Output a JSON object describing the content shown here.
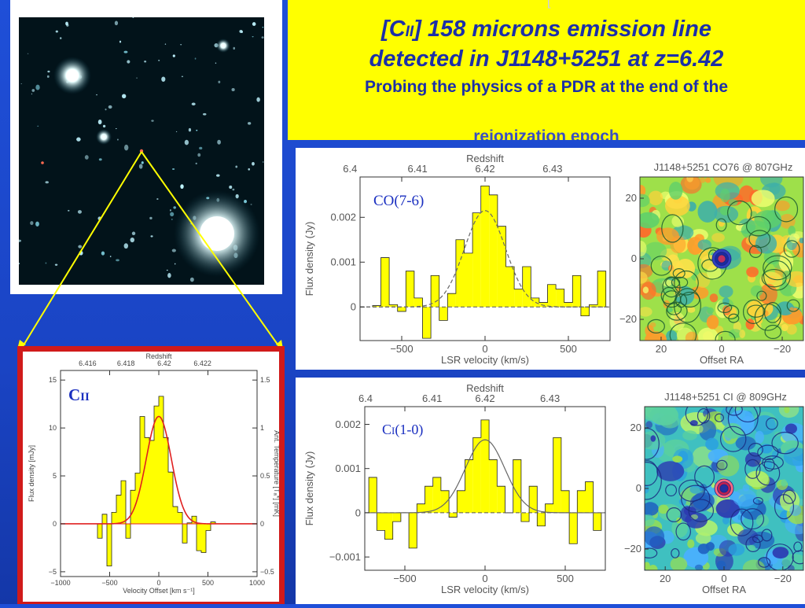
{
  "title": {
    "line1_prefix": "[C",
    "line1_ion": "II",
    "line1_suffix": "] 158 microns emission line",
    "line2": "detected in J1148+5251 at  z=6.42",
    "subtitle": "Probing the physics of a PDR at the end of the",
    "hidden_text": "reionization epoch",
    "top_mark": "["
  },
  "colors": {
    "background": "#1f4fd8",
    "title_bg": "#ffff00",
    "title_text": "#1c2fa8",
    "bar_fill": "#ffff00",
    "frame_red": "#d01a1a",
    "pointer_line": "#ffff00",
    "fit_red": "#e02020"
  },
  "sky_image": {
    "type": "deep-field-image"
  },
  "chart_data": [
    {
      "id": "cii",
      "type": "bar",
      "label_main": "C",
      "label_sub": "II",
      "top_axis_label": "Redshift",
      "top_ticks": [
        "6.416",
        "6.418",
        "6.42",
        "6.422"
      ],
      "top_tick_values": [
        -725,
        -335,
        55,
        445
      ],
      "x_ticks": [
        "−1000",
        "−500",
        "0",
        "500",
        "1000"
      ],
      "x_tick_values": [
        -1000,
        -500,
        0,
        500,
        1000
      ],
      "y_ticks": [
        "−5",
        "0",
        "5",
        "10",
        "15"
      ],
      "y_tick_values": [
        -5,
        0,
        5,
        10,
        15
      ],
      "right_ticks": [
        "−0.5",
        "0",
        "0.5",
        "1",
        "1.5"
      ],
      "right_tick_values": [
        -0.5,
        0,
        0.5,
        1,
        1.5
      ],
      "xlabel": "Velocity Offset [km s⁻¹]",
      "ylabel": "Flux density [mJy]",
      "right_ylabel": "Ant. Temperature [Tₐ*] [mK]",
      "xlim": [
        -1000,
        1000
      ],
      "ylim": [
        -5.5,
        16
      ],
      "bin_width": 48,
      "x": [
        -600,
        -552,
        -504,
        -456,
        -408,
        -360,
        -312,
        -264,
        -216,
        -168,
        -120,
        -72,
        -24,
        24,
        72,
        120,
        168,
        216,
        264,
        312,
        360,
        408,
        456,
        504,
        552,
        600
      ],
      "values": [
        -1.5,
        1.0,
        -4.4,
        1.2,
        3.0,
        4.5,
        -1.5,
        3.5,
        5.3,
        11.2,
        9.0,
        8.7,
        12.3,
        13.3,
        9.0,
        5.4,
        1.8,
        1.2,
        -2.0,
        0.1,
        0.8,
        -2.8,
        -3.0,
        -0.7,
        0.2,
        0
      ],
      "fit": {
        "amplitude": 11.2,
        "center": 0,
        "fwhm": 300
      }
    },
    {
      "id": "co76",
      "type": "bar",
      "label": "CO(7-6)",
      "top_axis_label": "Redshift",
      "top_ticks": [
        "6.4",
        "6.41",
        "6.42",
        "6.43"
      ],
      "top_tick_values": [
        -810,
        -405,
        0,
        405
      ],
      "x_ticks": [
        "−500",
        "0",
        "500"
      ],
      "x_tick_values": [
        -500,
        0,
        500
      ],
      "y_ticks": [
        "0",
        "0.001",
        "0.002"
      ],
      "y_tick_values": [
        0,
        0.001,
        0.002
      ],
      "xlabel": "LSR velocity (km/s)",
      "ylabel": "Flux density (Jy)",
      "xlim": [
        -750,
        750
      ],
      "ylim": [
        -0.00075,
        0.0029
      ],
      "bin_width": 50,
      "x": [
        -650,
        -600,
        -550,
        -500,
        -450,
        -400,
        -350,
        -300,
        -250,
        -200,
        -150,
        -100,
        -50,
        0,
        50,
        100,
        150,
        200,
        250,
        300,
        350,
        400,
        450,
        500,
        550,
        600,
        650,
        700
      ],
      "values": [
        3e-05,
        0.0011,
        5e-05,
        -0.0001,
        0.0008,
        0.0002,
        -0.0007,
        0.0007,
        -0.0003,
        0.0003,
        0.0015,
        0.0012,
        0.0021,
        0.0027,
        0.0025,
        0.0018,
        0.0009,
        0.0004,
        0.0009,
        0.0002,
        0.0001,
        0.0005,
        0.0004,
        0.0001,
        0.0007,
        -0.0002,
        5e-05,
        0.0008
      ],
      "fit": {
        "amplitude": 0.00215,
        "center": 0,
        "fwhm": 290
      }
    },
    {
      "id": "ci10",
      "type": "bar",
      "label_main": "C",
      "label_sub": "I",
      "label_rest": "(1-0)",
      "top_axis_label": "Redshift",
      "top_ticks": [
        "6.4",
        "6.41",
        "6.42",
        "6.43"
      ],
      "top_tick_values": [
        -745,
        -330,
        0,
        405
      ],
      "x_ticks": [
        "−500",
        "0",
        "500"
      ],
      "x_tick_values": [
        -500,
        0,
        500
      ],
      "y_ticks": [
        "−0.001",
        "0",
        "0.001",
        "0.002"
      ],
      "y_tick_values": [
        -0.001,
        0,
        0.001,
        0.002
      ],
      "xlabel": "LSR velocity (km/s)",
      "ylabel": "Flux density (Jy)",
      "xlim": [
        -750,
        750
      ],
      "ylim": [
        -0.0013,
        0.0024
      ],
      "bin_width": 50,
      "x": [
        -700,
        -650,
        -600,
        -550,
        -500,
        -450,
        -400,
        -350,
        -300,
        -250,
        -200,
        -150,
        -100,
        -50,
        0,
        50,
        100,
        150,
        200,
        250,
        300,
        350,
        400,
        450,
        500,
        550,
        600,
        650,
        700
      ],
      "values": [
        0.0008,
        -0.0004,
        -0.0006,
        -0.0002,
        0.0,
        -0.0008,
        0.0002,
        0.0006,
        0.0008,
        0.0005,
        -0.0001,
        0.0005,
        0.0012,
        0.0017,
        0.0021,
        0.0012,
        0.0006,
        0.0,
        0.0012,
        -0.0002,
        0.0006,
        -0.0003,
        0.0002,
        0.0017,
        0.0005,
        -0.0007,
        0.0005,
        0.0007,
        -0.0004
      ],
      "fit": {
        "amplitude": 0.00165,
        "center": 0,
        "fwhm": 290
      }
    }
  ],
  "maps": [
    {
      "id": "co76-map",
      "title": "J1148+5251 CO76 @ 807GHz",
      "x_ticks": [
        "20",
        "0",
        "−20"
      ],
      "x_tick_values": [
        20,
        0,
        -20
      ],
      "y_ticks": [
        "20",
        "0",
        "−20"
      ],
      "y_tick_values": [
        20,
        0,
        -20
      ],
      "xlabel": "Offset RA",
      "range": [
        -27,
        27
      ]
    },
    {
      "id": "ci-map",
      "title": "J1148+5251 CI @ 809GHz",
      "x_ticks": [
        "20",
        "0",
        "−20"
      ],
      "x_tick_values": [
        20,
        0,
        -20
      ],
      "y_ticks": [
        "20",
        "0",
        "−20"
      ],
      "y_tick_values": [
        20,
        0,
        -20
      ],
      "xlabel": "Offset RA",
      "range": [
        -27,
        27
      ]
    }
  ]
}
